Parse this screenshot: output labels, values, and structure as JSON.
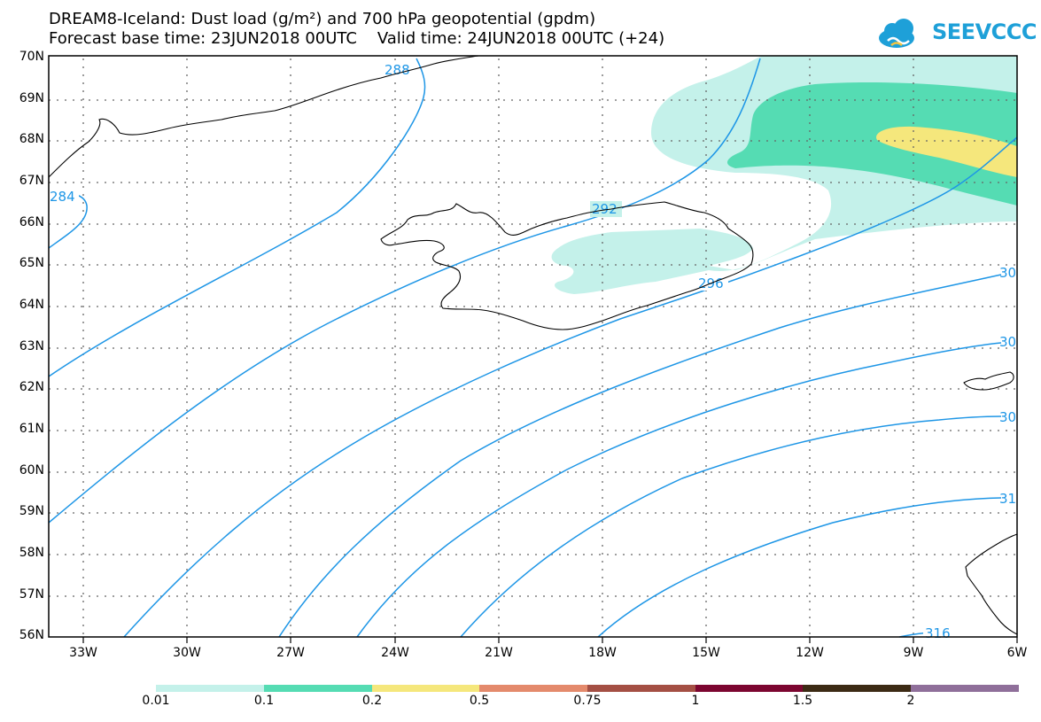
{
  "title_line1": "DREAM8-Iceland: Dust load (g/m²) and 700 hPa geopotential (gpdm)",
  "title_line2": "Forecast base time: 23JUN2018 00UTC    Valid time: 24JUN2018 00UTC (+24)",
  "logo_text": "SEEVCCC",
  "lat_labels": [
    "70N",
    "69N",
    "68N",
    "67N",
    "66N",
    "65N",
    "64N",
    "63N",
    "62N",
    "61N",
    "60N",
    "59N",
    "58N",
    "57N",
    "56N"
  ],
  "lon_labels": [
    "33W",
    "30W",
    "27W",
    "24W",
    "21W",
    "18W",
    "15W",
    "12W",
    "9W",
    "6W"
  ],
  "contour_labels": [
    "284",
    "288",
    "292",
    "296",
    "30",
    "30",
    "30",
    "31",
    "316"
  ],
  "colorbar": {
    "labels": [
      "0.01",
      "0.1",
      "0.2",
      "0.5",
      "0.75",
      "1",
      "1.5",
      "2"
    ],
    "colors": [
      "#c4f1ea",
      "#55dcb3",
      "#f5e77c",
      "#e48a6c",
      "#a44f44",
      "#7c0630",
      "#3c2a14",
      "#8f6f9a"
    ]
  },
  "colors": {
    "contour": "#1e96e6",
    "coast": "#000000"
  }
}
